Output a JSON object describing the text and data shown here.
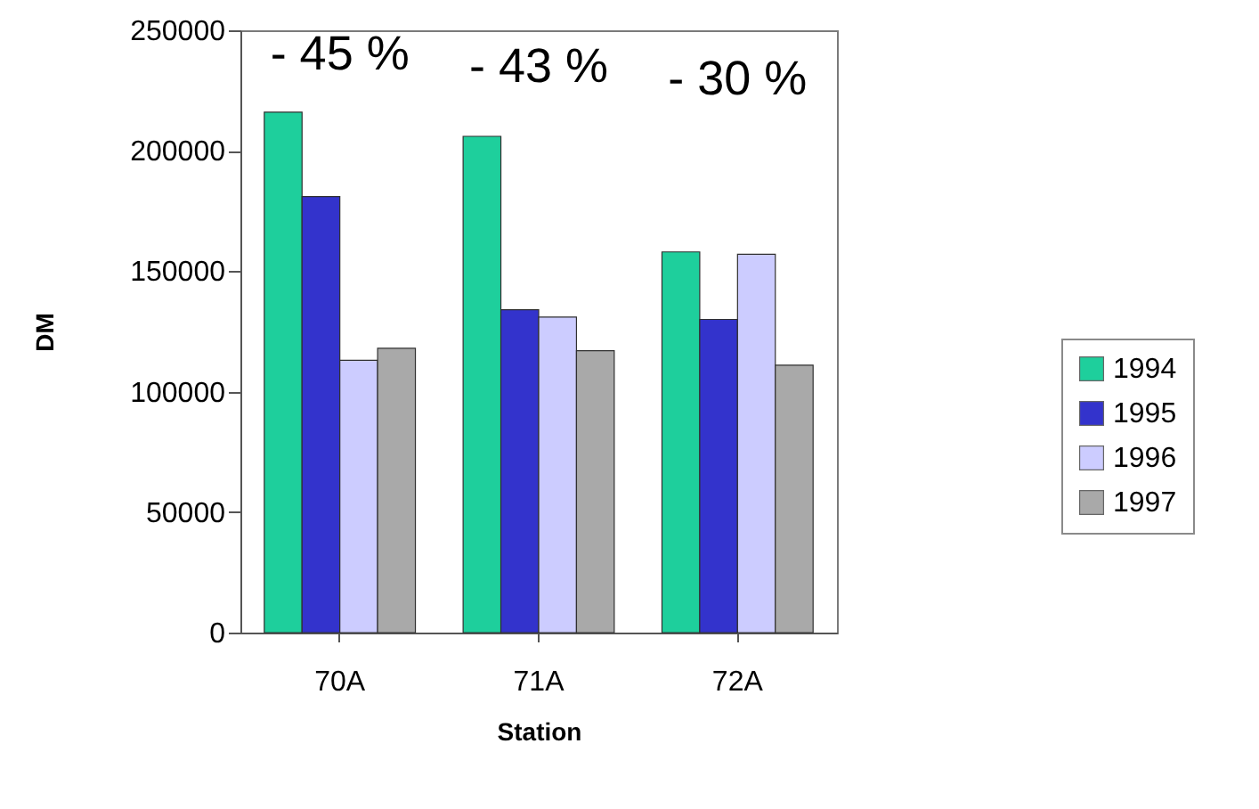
{
  "chart_data": {
    "type": "bar",
    "xlabel": "Station",
    "ylabel": "DM",
    "categories": [
      "70A",
      "71A",
      "72A"
    ],
    "series": [
      {
        "name": "1994",
        "color": "#1ecf9c",
        "values": [
          216000,
          206000,
          158000
        ]
      },
      {
        "name": "1995",
        "color": "#3333cc",
        "values": [
          181000,
          134000,
          130000
        ]
      },
      {
        "name": "1996",
        "color": "#ccccff",
        "values": [
          113000,
          131000,
          157000
        ]
      },
      {
        "name": "1997",
        "color": "#a9a9a9",
        "values": [
          118000,
          117000,
          111000
        ]
      }
    ],
    "ylim": [
      0,
      250000
    ],
    "yticks": [
      0,
      50000,
      100000,
      150000,
      200000,
      250000
    ],
    "annotations": [
      "- 45 %",
      "- 43 %",
      "- 30 %"
    ],
    "legend": "right"
  }
}
